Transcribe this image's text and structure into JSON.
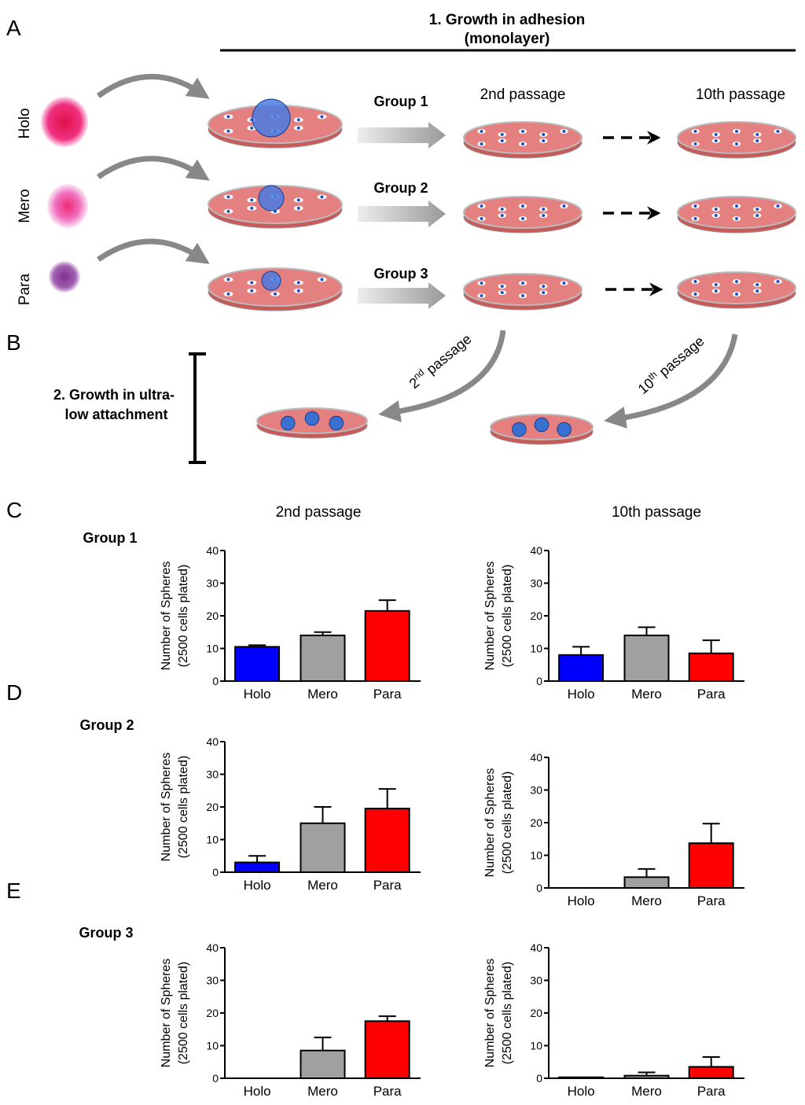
{
  "panels": [
    "A",
    "B",
    "C",
    "D",
    "E"
  ],
  "section_a": {
    "title": [
      "1. Growth in adhesion",
      "(monolayer)"
    ],
    "row_labels": [
      "Holo",
      "Mero",
      "Para"
    ],
    "groups": [
      "Group 1",
      "Group 2",
      "Group 3"
    ],
    "columns": [
      "2nd passage",
      "10th passage"
    ]
  },
  "section_b": {
    "title": [
      "2. Growth in ultra-",
      "low attachment"
    ],
    "arrow_labels": [
      {
        "number": "2",
        "suffix": "nd",
        "text": "passage"
      },
      {
        "number": "10",
        "suffix": "th",
        "text": "passage"
      }
    ]
  },
  "charts_header": {
    "columns": [
      "2nd passage",
      "10th passage"
    ],
    "groups": [
      "Group 1",
      "Group 2",
      "Group 3"
    ]
  },
  "chart_data": [
    {
      "type": "bar",
      "categories": [
        "Holo",
        "Mero",
        "Para"
      ],
      "values": [
        10.5,
        14,
        21.5
      ],
      "errors": [
        0.5,
        1,
        3.3
      ],
      "colors": [
        "#0000ff",
        "#a0a0a0",
        "#ff0000"
      ],
      "ylim": [
        0,
        40
      ],
      "yticks": [
        0,
        10,
        20,
        30,
        40
      ],
      "y_label": [
        "Number of Spheres",
        "(2500 cells plated)"
      ]
    },
    {
      "type": "bar",
      "categories": [
        "Holo",
        "Mero",
        "Para"
      ],
      "values": [
        8,
        14,
        8.5
      ],
      "errors": [
        2.5,
        2.5,
        4
      ],
      "colors": [
        "#0000ff",
        "#a0a0a0",
        "#ff0000"
      ],
      "ylim": [
        0,
        40
      ],
      "yticks": [
        0,
        10,
        20,
        30,
        40
      ],
      "y_label": [
        "Number of Spheres",
        "(2500 cells plated)"
      ]
    },
    {
      "type": "bar",
      "categories": [
        "Holo",
        "Mero",
        "Para"
      ],
      "values": [
        3,
        15,
        19.5
      ],
      "errors": [
        2,
        5,
        6
      ],
      "colors": [
        "#0000ff",
        "#a0a0a0",
        "#ff0000"
      ],
      "ylim": [
        0,
        40
      ],
      "yticks": [
        0,
        10,
        20,
        30,
        40
      ],
      "y_label": [
        "Number of Spheres",
        "(2500 cells plated)"
      ]
    },
    {
      "type": "bar",
      "categories": [
        "Holo",
        "Mero",
        "Para"
      ],
      "values": [
        0,
        3.3,
        13.7
      ],
      "errors": [
        0,
        2.5,
        6
      ],
      "colors": [
        "#0000ff",
        "#a0a0a0",
        "#ff0000"
      ],
      "ylim": [
        0,
        40
      ],
      "yticks": [
        0,
        10,
        20,
        30,
        40
      ],
      "y_label": [
        "Number of Spheres",
        "(2500 cells plated)"
      ]
    },
    {
      "type": "bar",
      "categories": [
        "Holo",
        "Mero",
        "Para"
      ],
      "values": [
        0,
        8.5,
        17.5
      ],
      "errors": [
        0,
        4,
        1.5
      ],
      "colors": [
        "#0000ff",
        "#a0a0a0",
        "#ff0000"
      ],
      "ylim": [
        0,
        40
      ],
      "yticks": [
        0,
        10,
        20,
        30,
        40
      ],
      "y_label": [
        "Number of Spheres",
        "(2500 cells plated)"
      ]
    },
    {
      "type": "bar",
      "categories": [
        "Holo",
        "Mero",
        "Para"
      ],
      "values": [
        0.3,
        0.8,
        3.5
      ],
      "errors": [
        0,
        1,
        3
      ],
      "colors": [
        "#0000ff",
        "#a0a0a0",
        "#ff0000"
      ],
      "ylim": [
        0,
        40
      ],
      "yticks": [
        0,
        10,
        20,
        30,
        40
      ],
      "y_label": [
        "Number of Spheres",
        "(2500 cells plated)"
      ]
    }
  ]
}
